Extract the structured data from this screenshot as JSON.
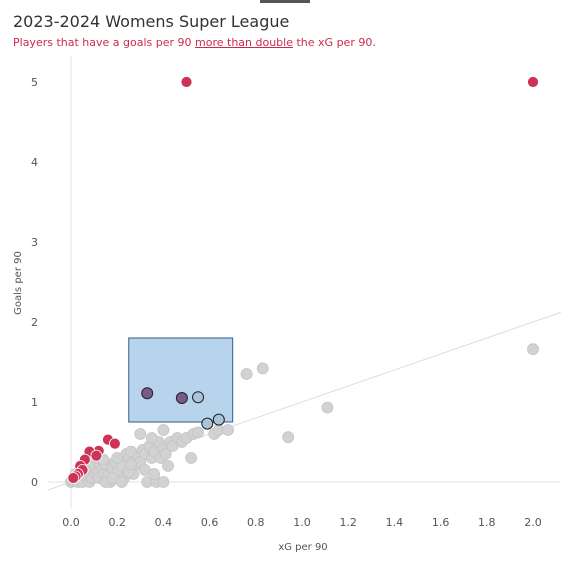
{
  "header": {
    "title": "2023-2024 Womens Super League",
    "subtitle_pre": "Players that have a goals per 90 ",
    "subtitle_emph": "more than double",
    "subtitle_post": " the xG per 90."
  },
  "colors": {
    "highlight": "#cc3355",
    "other": "#d2d2d2",
    "selected_fill": "#7a5a8a",
    "selected_blue": "#a9c4dc",
    "selection_box": "#b8d4ec",
    "selection_border": "#2e5f8a",
    "trend": "#dddddd",
    "axis": "#e2e2e2"
  },
  "chart_data": {
    "type": "scatter",
    "title": "2023-2024 Womens Super League",
    "xlabel": "xG per 90",
    "ylabel": "Goals per 90",
    "xlim": [
      -0.1,
      2.12
    ],
    "ylim": [
      -0.33,
      5.33
    ],
    "xticks": [
      0.0,
      0.2,
      0.4,
      0.6,
      0.8,
      1.0,
      1.2,
      1.4,
      1.6,
      1.8,
      2.0
    ],
    "xtick_labels": [
      "0.0",
      "0.2",
      "0.4",
      "0.6",
      "0.8",
      "1.0",
      "1.2",
      "1.4",
      "1.6",
      "1.8",
      "2.0"
    ],
    "yticks": [
      0,
      1,
      2,
      3,
      4,
      5
    ],
    "ytick_labels": [
      "0",
      "1",
      "2",
      "3",
      "4",
      "5"
    ],
    "grid": false,
    "trend_line": {
      "x0": -0.1,
      "y0": -0.1,
      "x1": 2.12,
      "y1": 2.12
    },
    "selection_box": {
      "x0": 0.25,
      "x1": 0.7,
      "y0": 0.75,
      "y1": 1.8
    },
    "series": [
      {
        "key": "other",
        "points": [
          [
            0.0,
            0.0
          ],
          [
            0.01,
            0.01
          ],
          [
            0.02,
            0.02
          ],
          [
            0.03,
            0.0
          ],
          [
            0.04,
            0.05
          ],
          [
            0.05,
            0.0
          ],
          [
            0.06,
            0.08
          ],
          [
            0.07,
            0.1
          ],
          [
            0.08,
            0.0
          ],
          [
            0.09,
            0.05
          ],
          [
            0.1,
            0.12
          ],
          [
            0.11,
            0.15
          ],
          [
            0.12,
            0.05
          ],
          [
            0.13,
            0.2
          ],
          [
            0.14,
            0.1
          ],
          [
            0.15,
            0.22
          ],
          [
            0.16,
            0.08
          ],
          [
            0.17,
            0.0
          ],
          [
            0.18,
            0.18
          ],
          [
            0.19,
            0.25
          ],
          [
            0.2,
            0.12
          ],
          [
            0.21,
            0.28
          ],
          [
            0.22,
            0.2
          ],
          [
            0.23,
            0.05
          ],
          [
            0.24,
            0.35
          ],
          [
            0.25,
            0.3
          ],
          [
            0.26,
            0.38
          ],
          [
            0.27,
            0.1
          ],
          [
            0.28,
            0.22
          ],
          [
            0.29,
            0.3
          ],
          [
            0.3,
            0.25
          ],
          [
            0.31,
            0.4
          ],
          [
            0.32,
            0.35
          ],
          [
            0.33,
            0.0
          ],
          [
            0.34,
            0.45
          ],
          [
            0.35,
            0.3
          ],
          [
            0.36,
            0.38
          ],
          [
            0.37,
            0.0
          ],
          [
            0.38,
            0.5
          ],
          [
            0.39,
            0.3
          ],
          [
            0.4,
            0.42
          ],
          [
            0.41,
            0.35
          ],
          [
            0.42,
            0.2
          ],
          [
            0.43,
            0.5
          ],
          [
            0.44,
            0.45
          ],
          [
            0.46,
            0.55
          ],
          [
            0.48,
            0.5
          ],
          [
            0.5,
            0.55
          ],
          [
            0.52,
            0.3
          ],
          [
            0.53,
            0.6
          ],
          [
            0.55,
            0.62
          ],
          [
            0.62,
            0.6
          ],
          [
            0.64,
            0.65
          ],
          [
            0.68,
            0.65
          ],
          [
            0.76,
            1.35
          ],
          [
            0.83,
            1.42
          ],
          [
            0.94,
            0.56
          ],
          [
            1.11,
            0.93
          ],
          [
            2.0,
            1.66
          ],
          [
            0.3,
            0.6
          ],
          [
            0.35,
            0.55
          ],
          [
            0.4,
            0.65
          ],
          [
            0.15,
            0.0
          ],
          [
            0.2,
            0.3
          ],
          [
            0.25,
            0.12
          ],
          [
            0.05,
            0.2
          ],
          [
            0.1,
            0.25
          ],
          [
            0.12,
            0.3
          ],
          [
            0.08,
            0.2
          ],
          [
            0.18,
            0.05
          ],
          [
            0.22,
            0.0
          ],
          [
            0.26,
            0.22
          ],
          [
            0.32,
            0.15
          ],
          [
            0.36,
            0.1
          ],
          [
            0.4,
            0.0
          ],
          [
            0.02,
            0.1
          ],
          [
            0.06,
            0.15
          ],
          [
            0.14,
            0.28
          ]
        ]
      },
      {
        "key": "highlight",
        "points": [
          [
            0.5,
            5.0
          ],
          [
            2.0,
            5.0
          ],
          [
            0.16,
            0.53
          ],
          [
            0.19,
            0.48
          ],
          [
            0.12,
            0.39
          ],
          [
            0.08,
            0.38
          ],
          [
            0.11,
            0.33
          ],
          [
            0.06,
            0.28
          ],
          [
            0.04,
            0.2
          ],
          [
            0.05,
            0.15
          ],
          [
            0.03,
            0.1
          ],
          [
            0.02,
            0.07
          ],
          [
            0.01,
            0.05
          ]
        ]
      },
      {
        "key": "selected",
        "points": [
          [
            0.33,
            1.11
          ],
          [
            0.48,
            1.05
          ]
        ]
      },
      {
        "key": "selected_other",
        "points": [
          [
            0.55,
            1.06
          ],
          [
            0.64,
            0.78
          ],
          [
            0.59,
            0.73
          ]
        ]
      }
    ]
  }
}
